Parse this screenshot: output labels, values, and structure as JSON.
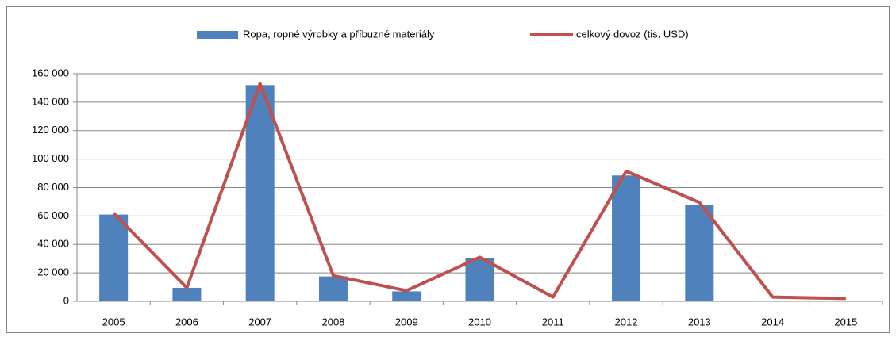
{
  "chart_data": {
    "type": "bar",
    "categories": [
      "2005",
      "2006",
      "2007",
      "2008",
      "2009",
      "2010",
      "2011",
      "2012",
      "2013",
      "2014",
      "2015"
    ],
    "series": [
      {
        "name": "Ropa, ropné výrobky a příbuzné materiály",
        "type": "bar",
        "color": "#4f81bd",
        "values": [
          61000,
          9500,
          152000,
          17500,
          7000,
          30500,
          null,
          88500,
          67500,
          null,
          null
        ]
      },
      {
        "name": "celkový dovoz (tis. USD)",
        "type": "line",
        "color": "#c0504d",
        "values": [
          62000,
          9500,
          153000,
          18000,
          7500,
          31000,
          3000,
          91500,
          69500,
          3000,
          2000
        ]
      }
    ],
    "ylim": [
      0,
      160000
    ],
    "yticks": [
      0,
      {
        "value": 20000,
        "label": "20 000"
      },
      {
        "value": 40000,
        "label": "40 000"
      },
      {
        "value": 60000,
        "label": "60 000"
      },
      {
        "value": 80000,
        "label": "80 000"
      },
      {
        "value": 100000,
        "label": "100 000"
      },
      {
        "value": 120000,
        "label": "120 000"
      },
      {
        "value": 140000,
        "label": "140 000"
      },
      {
        "value": 160000,
        "label": "160 000"
      }
    ],
    "grid": true,
    "legend": "top"
  }
}
